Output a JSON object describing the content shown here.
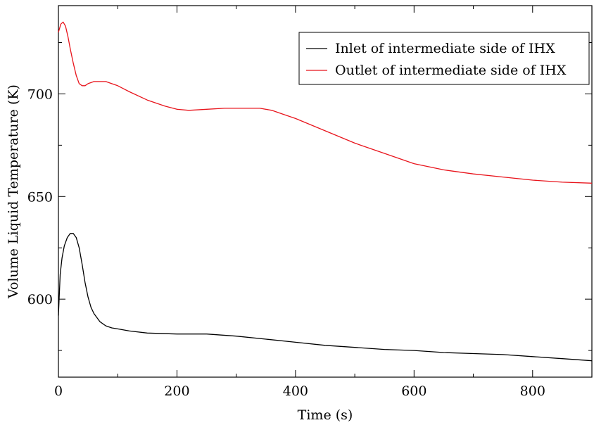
{
  "chart_data": {
    "type": "line",
    "title": "",
    "xlabel": "Time (s)",
    "ylabel": "Volume Liquid Temperature (K)",
    "xlim": [
      0,
      900
    ],
    "ylim": [
      562,
      743
    ],
    "x_ticks": [
      0,
      200,
      400,
      600,
      800
    ],
    "x_tick_labels": [
      "0",
      "200",
      "400",
      "600",
      "800"
    ],
    "x_minor_ticks": [
      100,
      300,
      500,
      700
    ],
    "y_ticks": [
      600,
      650,
      700
    ],
    "y_tick_labels": [
      "600",
      "650",
      "700"
    ],
    "y_minor_ticks": [
      575,
      625,
      675,
      725
    ],
    "grid": false,
    "legend_position": "top-right",
    "series": [
      {
        "name": "Inlet of intermediate side of IHX",
        "color": "#000000",
        "x": [
          0,
          3,
          6,
          10,
          15,
          20,
          25,
          30,
          35,
          40,
          45,
          50,
          55,
          60,
          70,
          80,
          90,
          100,
          120,
          150,
          200,
          250,
          300,
          350,
          400,
          450,
          500,
          550,
          600,
          650,
          700,
          750,
          800,
          850,
          900
        ],
        "y": [
          592,
          612,
          620,
          626,
          630,
          632,
          632,
          630,
          625,
          617,
          608,
          601,
          596,
          593,
          589,
          587,
          586,
          585.5,
          584.5,
          583.5,
          583,
          583,
          582,
          580.5,
          579,
          577.5,
          576.5,
          575.5,
          575,
          574,
          573.5,
          573,
          572,
          571,
          570
        ]
      },
      {
        "name": "Outlet of intermediate side of IHX",
        "color": "#e8141c",
        "x": [
          0,
          4,
          8,
          12,
          16,
          20,
          25,
          30,
          35,
          40,
          45,
          50,
          60,
          70,
          80,
          90,
          100,
          120,
          150,
          180,
          200,
          220,
          250,
          280,
          300,
          320,
          340,
          360,
          380,
          400,
          450,
          500,
          550,
          600,
          650,
          700,
          750,
          800,
          850,
          900
        ],
        "y": [
          730,
          734,
          735,
          733,
          728,
          722,
          715,
          709,
          705,
          704,
          704,
          705,
          706,
          706,
          706,
          705,
          704,
          701,
          697,
          694,
          692.5,
          692,
          692.5,
          693,
          693,
          693,
          693,
          692,
          690,
          688,
          682,
          676,
          671,
          666,
          663,
          661,
          659.5,
          658,
          657,
          656.5
        ]
      }
    ]
  }
}
